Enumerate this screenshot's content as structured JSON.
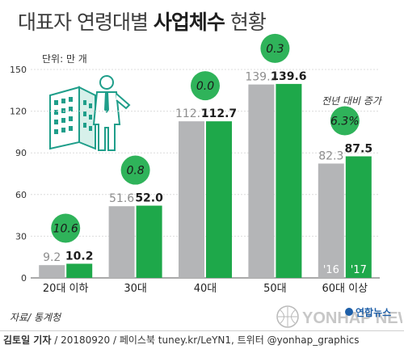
{
  "title": {
    "prefix": "대표자 연령대별 ",
    "bold": "사업체수",
    "suffix": " 현황"
  },
  "unit_label": "단위: 만 개",
  "change_label": "전년 대비 증가",
  "source": "자료/ 통계청",
  "footer": {
    "author": "김토일 기자",
    "rest": " / 20180920 / 페이스북 tuney.kr/LeYN1, 트위터 @yonhap_graphics"
  },
  "logo": {
    "agency": "연합뉴스",
    "watermark": "YONHAP NEWS"
  },
  "colors": {
    "prev": "#b4b5b7",
    "curr": "#1ea84a",
    "bubble": "#2fb35a",
    "grid": "#dcdcdc",
    "axis": "#555555"
  },
  "chart_data": {
    "type": "bar",
    "categories": [
      "20대 이하",
      "30대",
      "40대",
      "50대",
      "60대 이상"
    ],
    "series": [
      {
        "name": "'16",
        "values": [
          9.2,
          51.6,
          112.7,
          139.2,
          82.3
        ]
      },
      {
        "name": "'17",
        "values": [
          10.2,
          52.0,
          112.7,
          139.6,
          87.5
        ]
      }
    ],
    "value_labels": {
      "prev": [
        "9.2",
        "51.6",
        "112.7",
        "139.2",
        "82.3"
      ],
      "curr": [
        "10.2",
        "52.0",
        "112.7",
        "139.6",
        "87.5"
      ]
    },
    "change_pct": [
      "10.6",
      "0.8",
      "0.0",
      "0.3",
      "6.3%"
    ],
    "ylim": [
      0,
      150
    ],
    "yticks": [
      0,
      30,
      60,
      90,
      120,
      150
    ],
    "grid": true
  }
}
